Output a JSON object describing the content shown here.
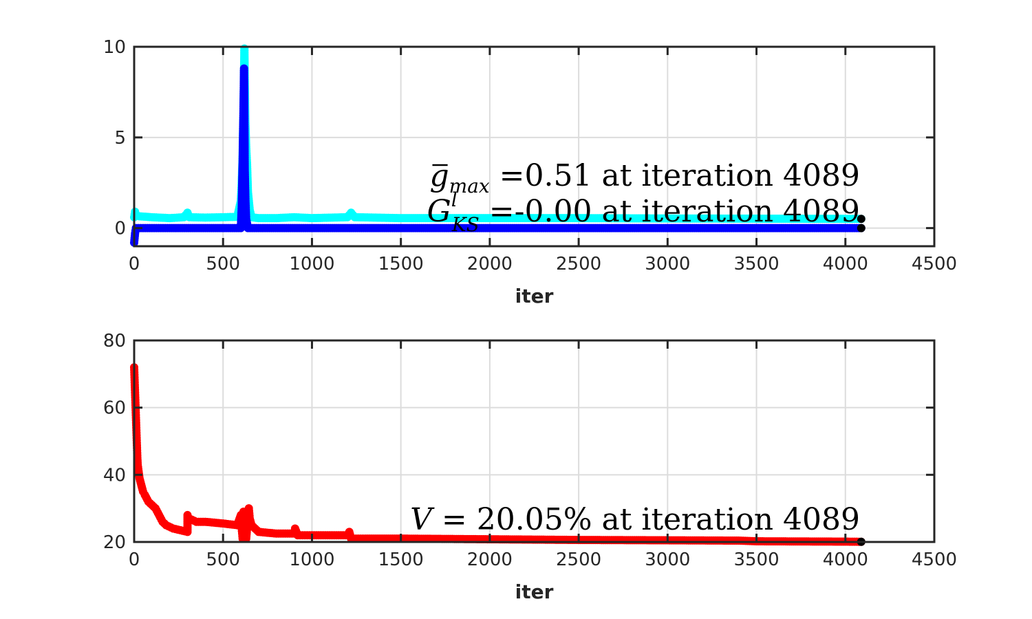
{
  "chart_data": [
    {
      "type": "scatter",
      "xlabel": "iter",
      "ylabel": "",
      "xlim": [
        0,
        4500
      ],
      "ylim": [
        -1,
        10
      ],
      "xticks": [
        0,
        500,
        1000,
        1500,
        2000,
        2500,
        3000,
        3500,
        4000,
        4500
      ],
      "yticks": [
        0,
        5,
        10
      ],
      "grid": true,
      "annotations": [
        {
          "symbol": "g",
          "bar": true,
          "sub": "max",
          "sup": "",
          "text": " =0.51 at iteration 4089"
        },
        {
          "symbol": "G",
          "bar": false,
          "sub": "KS",
          "sup": "l",
          "text": " =-0.00 at iteration 4089"
        }
      ],
      "series": [
        {
          "color": "#00ffff",
          "points": [
            [
              0,
              0.6
            ],
            [
              5,
              0.9
            ],
            [
              10,
              0.75
            ],
            [
              30,
              0.65
            ],
            [
              100,
              0.6
            ],
            [
              200,
              0.55
            ],
            [
              280,
              0.6
            ],
            [
              300,
              0.85
            ],
            [
              310,
              0.6
            ],
            [
              400,
              0.58
            ],
            [
              500,
              0.6
            ],
            [
              580,
              0.62
            ],
            [
              600,
              1.5
            ],
            [
              605,
              2.5
            ],
            [
              610,
              4.0
            ],
            [
              612,
              5.2
            ],
            [
              615,
              6.3
            ],
            [
              617,
              7.8
            ],
            [
              620,
              9.9
            ],
            [
              625,
              6.0
            ],
            [
              630,
              4.5
            ],
            [
              635,
              3.5
            ],
            [
              640,
              2.0
            ],
            [
              650,
              1.0
            ],
            [
              660,
              0.6
            ],
            [
              700,
              0.55
            ],
            [
              800,
              0.55
            ],
            [
              900,
              0.6
            ],
            [
              1000,
              0.55
            ],
            [
              1200,
              0.6
            ],
            [
              1220,
              0.85
            ],
            [
              1240,
              0.6
            ],
            [
              1500,
              0.55
            ],
            [
              2000,
              0.55
            ],
            [
              2500,
              0.55
            ],
            [
              3000,
              0.53
            ],
            [
              3500,
              0.52
            ],
            [
              4000,
              0.51
            ],
            [
              4089,
              0.51
            ]
          ]
        },
        {
          "color": "#0000ff",
          "points": [
            [
              0,
              -0.8
            ],
            [
              5,
              -0.3
            ],
            [
              10,
              0
            ],
            [
              50,
              0
            ],
            [
              200,
              0
            ],
            [
              400,
              0
            ],
            [
              600,
              0
            ],
            [
              605,
              1.2
            ],
            [
              608,
              2.8
            ],
            [
              610,
              3.6
            ],
            [
              612,
              5.0
            ],
            [
              615,
              6.7
            ],
            [
              618,
              8.8
            ],
            [
              622,
              3.2
            ],
            [
              626,
              1.5
            ],
            [
              630,
              0.5
            ],
            [
              640,
              0
            ],
            [
              700,
              0
            ],
            [
              1000,
              0
            ],
            [
              1500,
              0
            ],
            [
              2000,
              0
            ],
            [
              2500,
              0
            ],
            [
              3000,
              0
            ],
            [
              3500,
              0
            ],
            [
              4000,
              0
            ],
            [
              4089,
              0
            ]
          ]
        },
        {
          "color": "#000000",
          "points": [
            [
              4089,
              0.51
            ],
            [
              4089,
              0
            ]
          ]
        }
      ]
    },
    {
      "type": "scatter",
      "xlabel": "iter",
      "ylabel": "",
      "xlim": [
        0,
        4500
      ],
      "ylim": [
        20,
        80
      ],
      "xticks": [
        0,
        500,
        1000,
        1500,
        2000,
        2500,
        3000,
        3500,
        4000,
        4500
      ],
      "yticks": [
        20,
        40,
        60,
        80
      ],
      "grid": true,
      "annotations": [
        {
          "symbol": "V",
          "text": " = 20.05% at iteration 4089"
        }
      ],
      "series": [
        {
          "color": "#ff0000",
          "points": [
            [
              0,
              72
            ],
            [
              2,
              69
            ],
            [
              4,
              66
            ],
            [
              6,
              63
            ],
            [
              8,
              60
            ],
            [
              10,
              57
            ],
            [
              12,
              54
            ],
            [
              14,
              51
            ],
            [
              16,
              48
            ],
            [
              18,
              45
            ],
            [
              20,
              43
            ],
            [
              25,
              41
            ],
            [
              30,
              39
            ],
            [
              40,
              37
            ],
            [
              50,
              35
            ],
            [
              60,
              34
            ],
            [
              80,
              32
            ],
            [
              100,
              31
            ],
            [
              120,
              30
            ],
            [
              140,
              28
            ],
            [
              160,
              26
            ],
            [
              180,
              25
            ],
            [
              220,
              24
            ],
            [
              260,
              23.5
            ],
            [
              300,
              23
            ],
            [
              300,
              28
            ],
            [
              310,
              27
            ],
            [
              350,
              26
            ],
            [
              400,
              26
            ],
            [
              500,
              25.5
            ],
            [
              580,
              25
            ],
            [
              600,
              28
            ],
            [
              605,
              24
            ],
            [
              610,
              21
            ],
            [
              615,
              29
            ],
            [
              620,
              23
            ],
            [
              630,
              21
            ],
            [
              645,
              30
            ],
            [
              650,
              27
            ],
            [
              660,
              25
            ],
            [
              700,
              23
            ],
            [
              800,
              22.5
            ],
            [
              900,
              22.5
            ],
            [
              905,
              24
            ],
            [
              920,
              22
            ],
            [
              1000,
              22
            ],
            [
              1100,
              22
            ],
            [
              1200,
              22
            ],
            [
              1210,
              23
            ],
            [
              1220,
              21
            ],
            [
              1300,
              21
            ],
            [
              1500,
              21
            ],
            [
              2000,
              20.8
            ],
            [
              2500,
              20.6
            ],
            [
              3000,
              20.5
            ],
            [
              3400,
              20.4
            ],
            [
              3500,
              20.2
            ],
            [
              4000,
              20.1
            ],
            [
              4089,
              20.05
            ]
          ]
        },
        {
          "color": "#000000",
          "points": [
            [
              4089,
              20.05
            ]
          ]
        }
      ]
    }
  ]
}
